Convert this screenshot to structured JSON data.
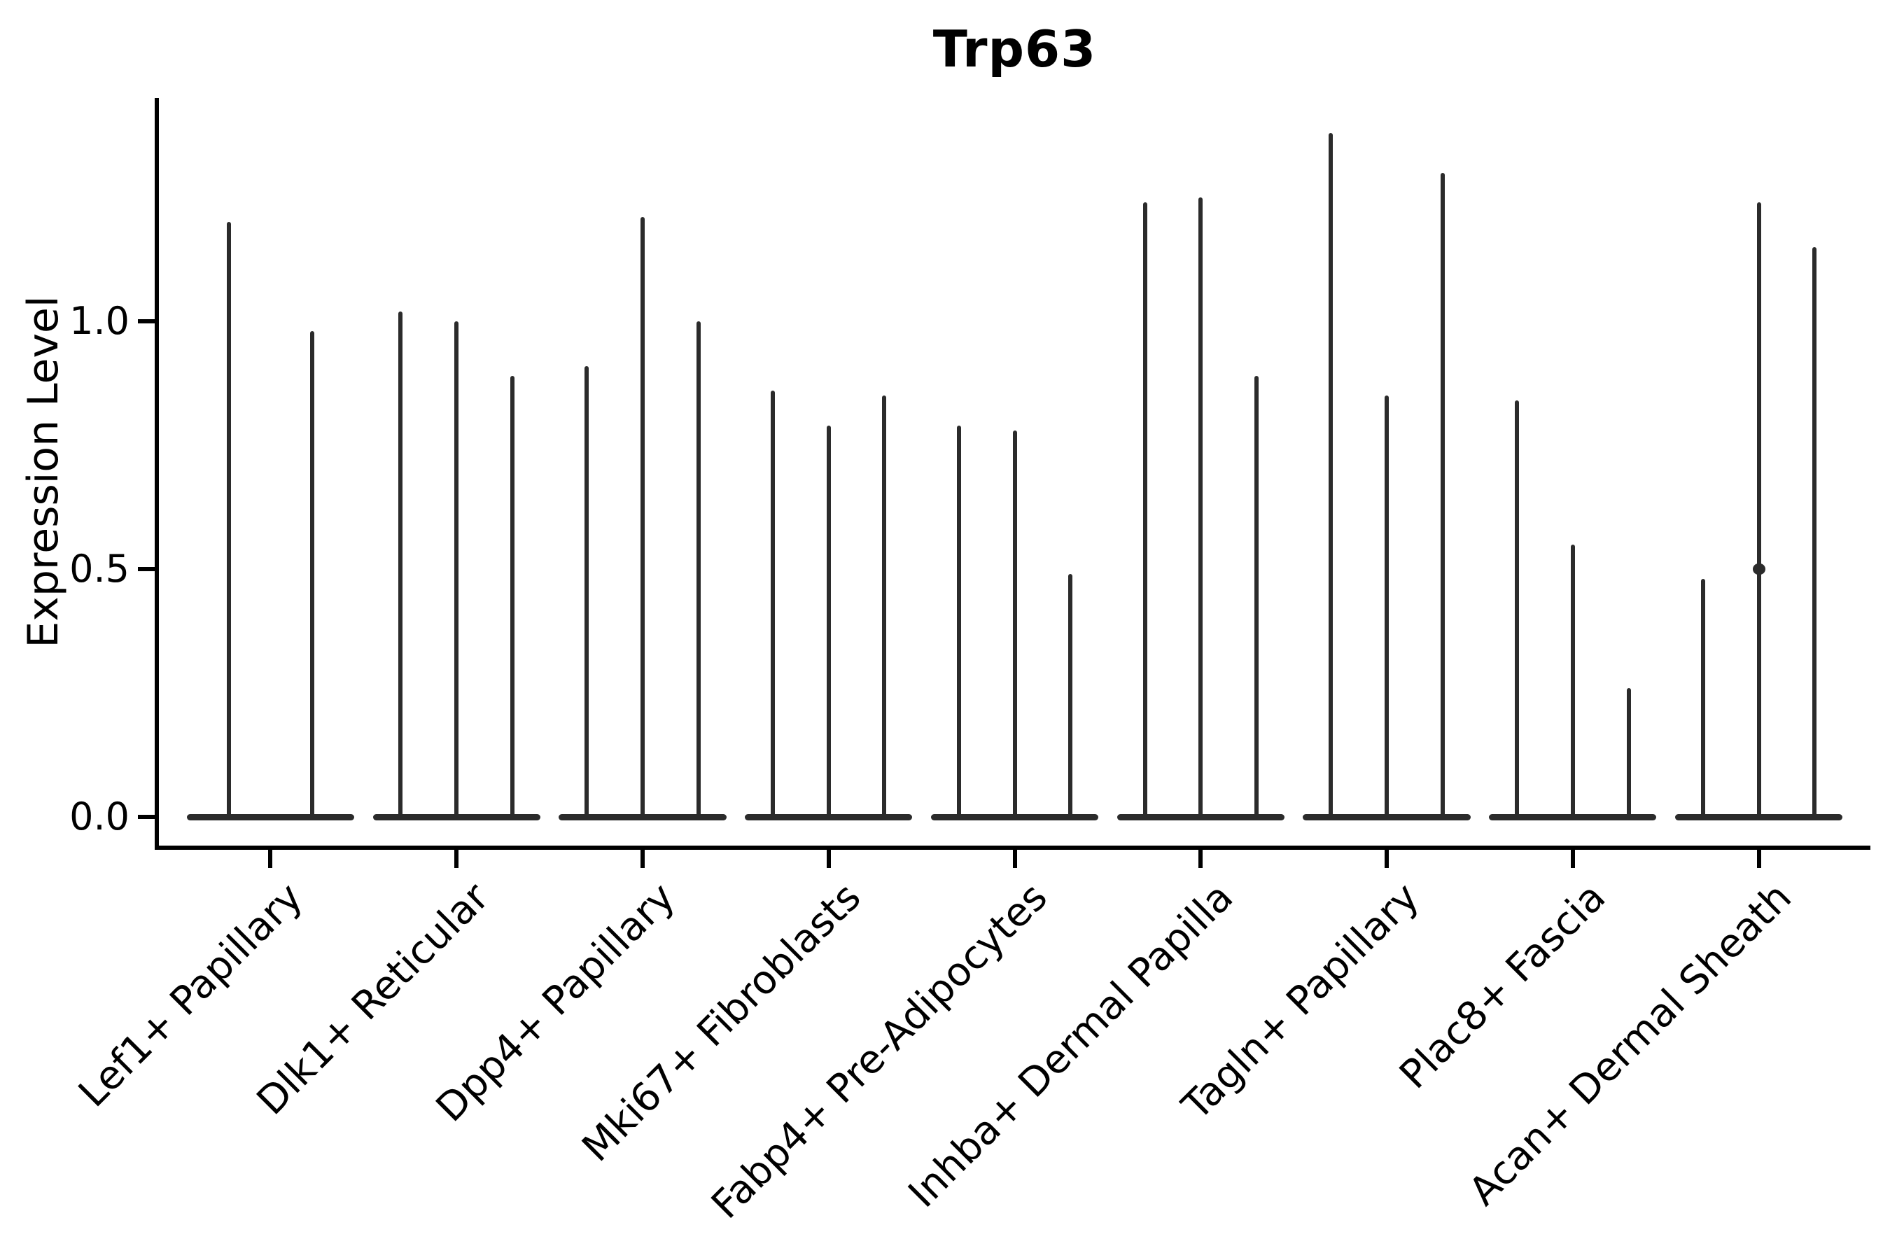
{
  "title": "Trp63",
  "y_axis": {
    "label": "Expression Level",
    "ticks": [
      {
        "label": "0.0",
        "value": 0.0
      },
      {
        "label": "0.5",
        "value": 0.5
      },
      {
        "label": "1.0",
        "value": 1.0
      }
    ]
  },
  "x_axis": {
    "categories": [
      "Lef1+ Papillary",
      "Dlk1+ Reticular",
      "Dpp4+ Papillary",
      "Mki67+ Fibroblasts",
      "Fabp4+ Pre-Adipocytes",
      "Inhba+ Dermal Papilla",
      "Tagln+ Papillary",
      "Plac8+ Fascia",
      "Acan+ Dermal Sheath"
    ]
  },
  "style": {
    "violin_color": "#2b2b2b",
    "axis_color": "#000000",
    "text_color": "#000000",
    "background": "#ffffff"
  },
  "chart_data": {
    "type": "violin",
    "title": "Trp63",
    "xlabel": "",
    "ylabel": "Expression Level",
    "ylim": [
      -0.06,
      1.45
    ],
    "yticks": [
      0.0,
      0.5,
      1.0
    ],
    "grid": false,
    "legend_position": "none",
    "categories": [
      "Lef1+ Papillary",
      "Dlk1+ Reticular",
      "Dpp4+ Papillary",
      "Mki67+ Fibroblasts",
      "Fabp4+ Pre-Adipocytes",
      "Inhba+ Dermal Papilla",
      "Tagln+ Papillary",
      "Plac8+ Fascia",
      "Acan+ Dermal Sheath"
    ],
    "violins": [
      {
        "category": "Lef1+ Papillary",
        "peaks": [
          1.2,
          0.98
        ]
      },
      {
        "category": "Dlk1+ Reticular",
        "peaks": [
          1.02,
          1.0,
          0.89
        ]
      },
      {
        "category": "Dpp4+ Papillary",
        "peaks": [
          0.91,
          1.21,
          1.0
        ]
      },
      {
        "category": "Mki67+ Fibroblasts",
        "peaks": [
          0.86,
          0.79,
          0.85
        ]
      },
      {
        "category": "Fabp4+ Pre-Adipocytes",
        "peaks": [
          0.79,
          0.78,
          0.49
        ]
      },
      {
        "category": "Inhba+ Dermal Papilla",
        "peaks": [
          1.24,
          1.25,
          0.89
        ]
      },
      {
        "category": "Tagln+ Papillary",
        "peaks": [
          1.38,
          0.85,
          1.3
        ]
      },
      {
        "category": "Plac8+ Fascia",
        "peaks": [
          0.84,
          0.55,
          0.26
        ]
      },
      {
        "category": "Acan+ Dermal Sheath",
        "peaks": [
          0.48,
          1.24,
          1.15
        ],
        "marks": [
          {
            "spike": 1,
            "value": 0.5
          }
        ]
      }
    ]
  }
}
